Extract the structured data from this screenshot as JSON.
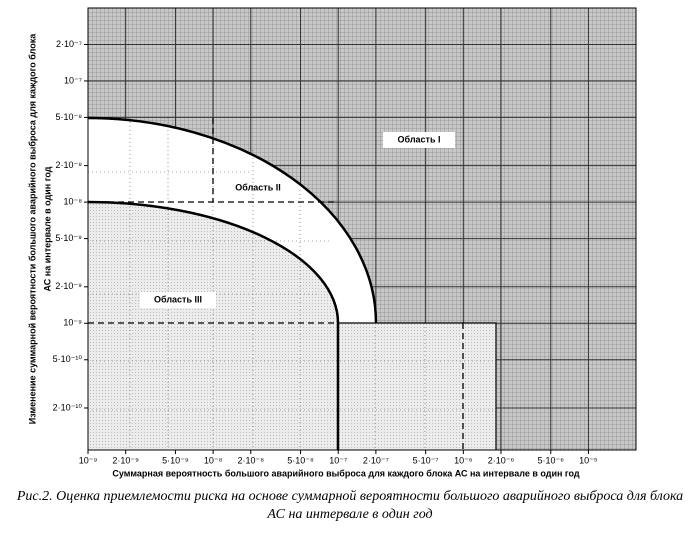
{
  "chart_data": {
    "type": "region",
    "xlabel": "Суммарная вероятность большого аварийного выброса для каждого блока АС на интервале в один год",
    "ylabel": [
      "Изменение суммарной вероятности большого аварийного выброса для каждого блока",
      "АС на интервале в один год"
    ],
    "annotations": [
      "Область I",
      "Область II",
      "Область III"
    ],
    "xscale": "log",
    "yscale": "log",
    "grid": true,
    "xlim": [
      1e-09,
      2.4e-05
    ],
    "ylim": [
      9e-11,
      4e-07
    ],
    "xticks": [
      {
        "value": 1e-09,
        "label": "10⁻⁹"
      },
      {
        "value": 2e-09,
        "label": "2·10⁻⁹"
      },
      {
        "value": 5e-09,
        "label": "5·10⁻⁹"
      },
      {
        "value": 1e-08,
        "label": "10⁻⁸"
      },
      {
        "value": 2e-08,
        "label": "2·10⁻⁸"
      },
      {
        "value": 5e-08,
        "label": "5·10⁻⁸"
      },
      {
        "value": 1e-07,
        "label": "10⁻⁷"
      },
      {
        "value": 2e-07,
        "label": "2·10⁻⁷"
      },
      {
        "value": 5e-07,
        "label": "5·10⁻⁷"
      },
      {
        "value": 1e-06,
        "label": "10⁻⁶"
      },
      {
        "value": 2e-06,
        "label": "2·10⁻⁶"
      },
      {
        "value": 5e-06,
        "label": "5·10⁻⁶"
      },
      {
        "value": 1e-05,
        "label": "10⁻⁵"
      }
    ],
    "yticks": [
      {
        "value": 2e-10,
        "label": "2·10⁻¹⁰"
      },
      {
        "value": 5e-10,
        "label": "5·10⁻¹⁰"
      },
      {
        "value": 1e-09,
        "label": "10⁻⁹"
      },
      {
        "value": 2e-09,
        "label": "2·10⁻⁹"
      },
      {
        "value": 5e-09,
        "label": "5·10⁻⁹"
      },
      {
        "value": 1e-08,
        "label": "10⁻⁸"
      },
      {
        "value": 2e-08,
        "label": "2·10⁻⁸"
      },
      {
        "value": 5e-08,
        "label": "5·10⁻⁸"
      },
      {
        "value": 1e-07,
        "label": "10⁻⁷"
      },
      {
        "value": 2e-07,
        "label": "2·10⁻⁷"
      }
    ]
  },
  "caption": "Рис.2.  Оценка приемлемости риска на основе суммарной вероятности большого аварийного выброса для блока АС на интервале в один год"
}
